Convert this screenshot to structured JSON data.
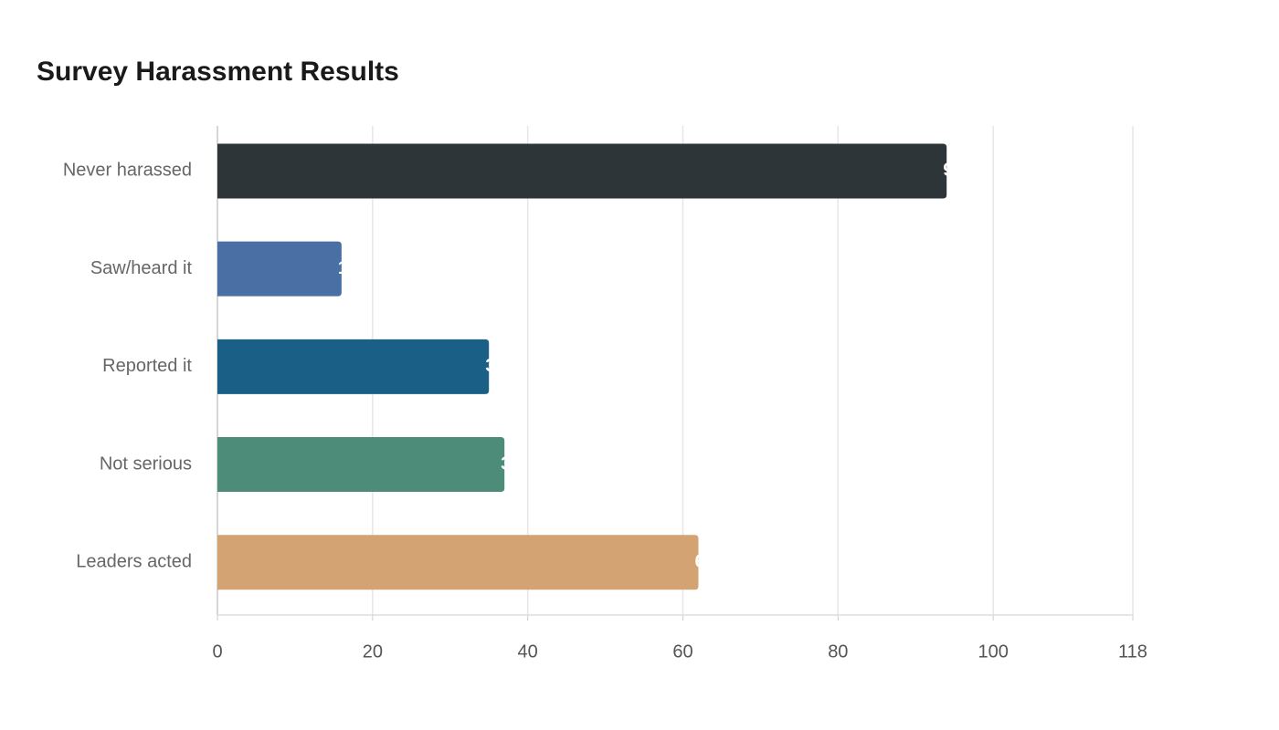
{
  "chart_data": {
    "type": "bar",
    "orientation": "horizontal",
    "title": "Survey Harassment Results",
    "categories": [
      "Never harassed",
      "Saw/heard it",
      "Reported it",
      "Not serious",
      "Leaders acted"
    ],
    "values": [
      94,
      16,
      35,
      37,
      62
    ],
    "colors": [
      "#2e3538",
      "#4a6fa5",
      "#1a5f86",
      "#4e8c7a",
      "#d4a373"
    ],
    "xlim": [
      0,
      118
    ],
    "xticks": [
      0,
      20,
      40,
      60,
      80,
      100,
      118
    ],
    "grid": true
  }
}
